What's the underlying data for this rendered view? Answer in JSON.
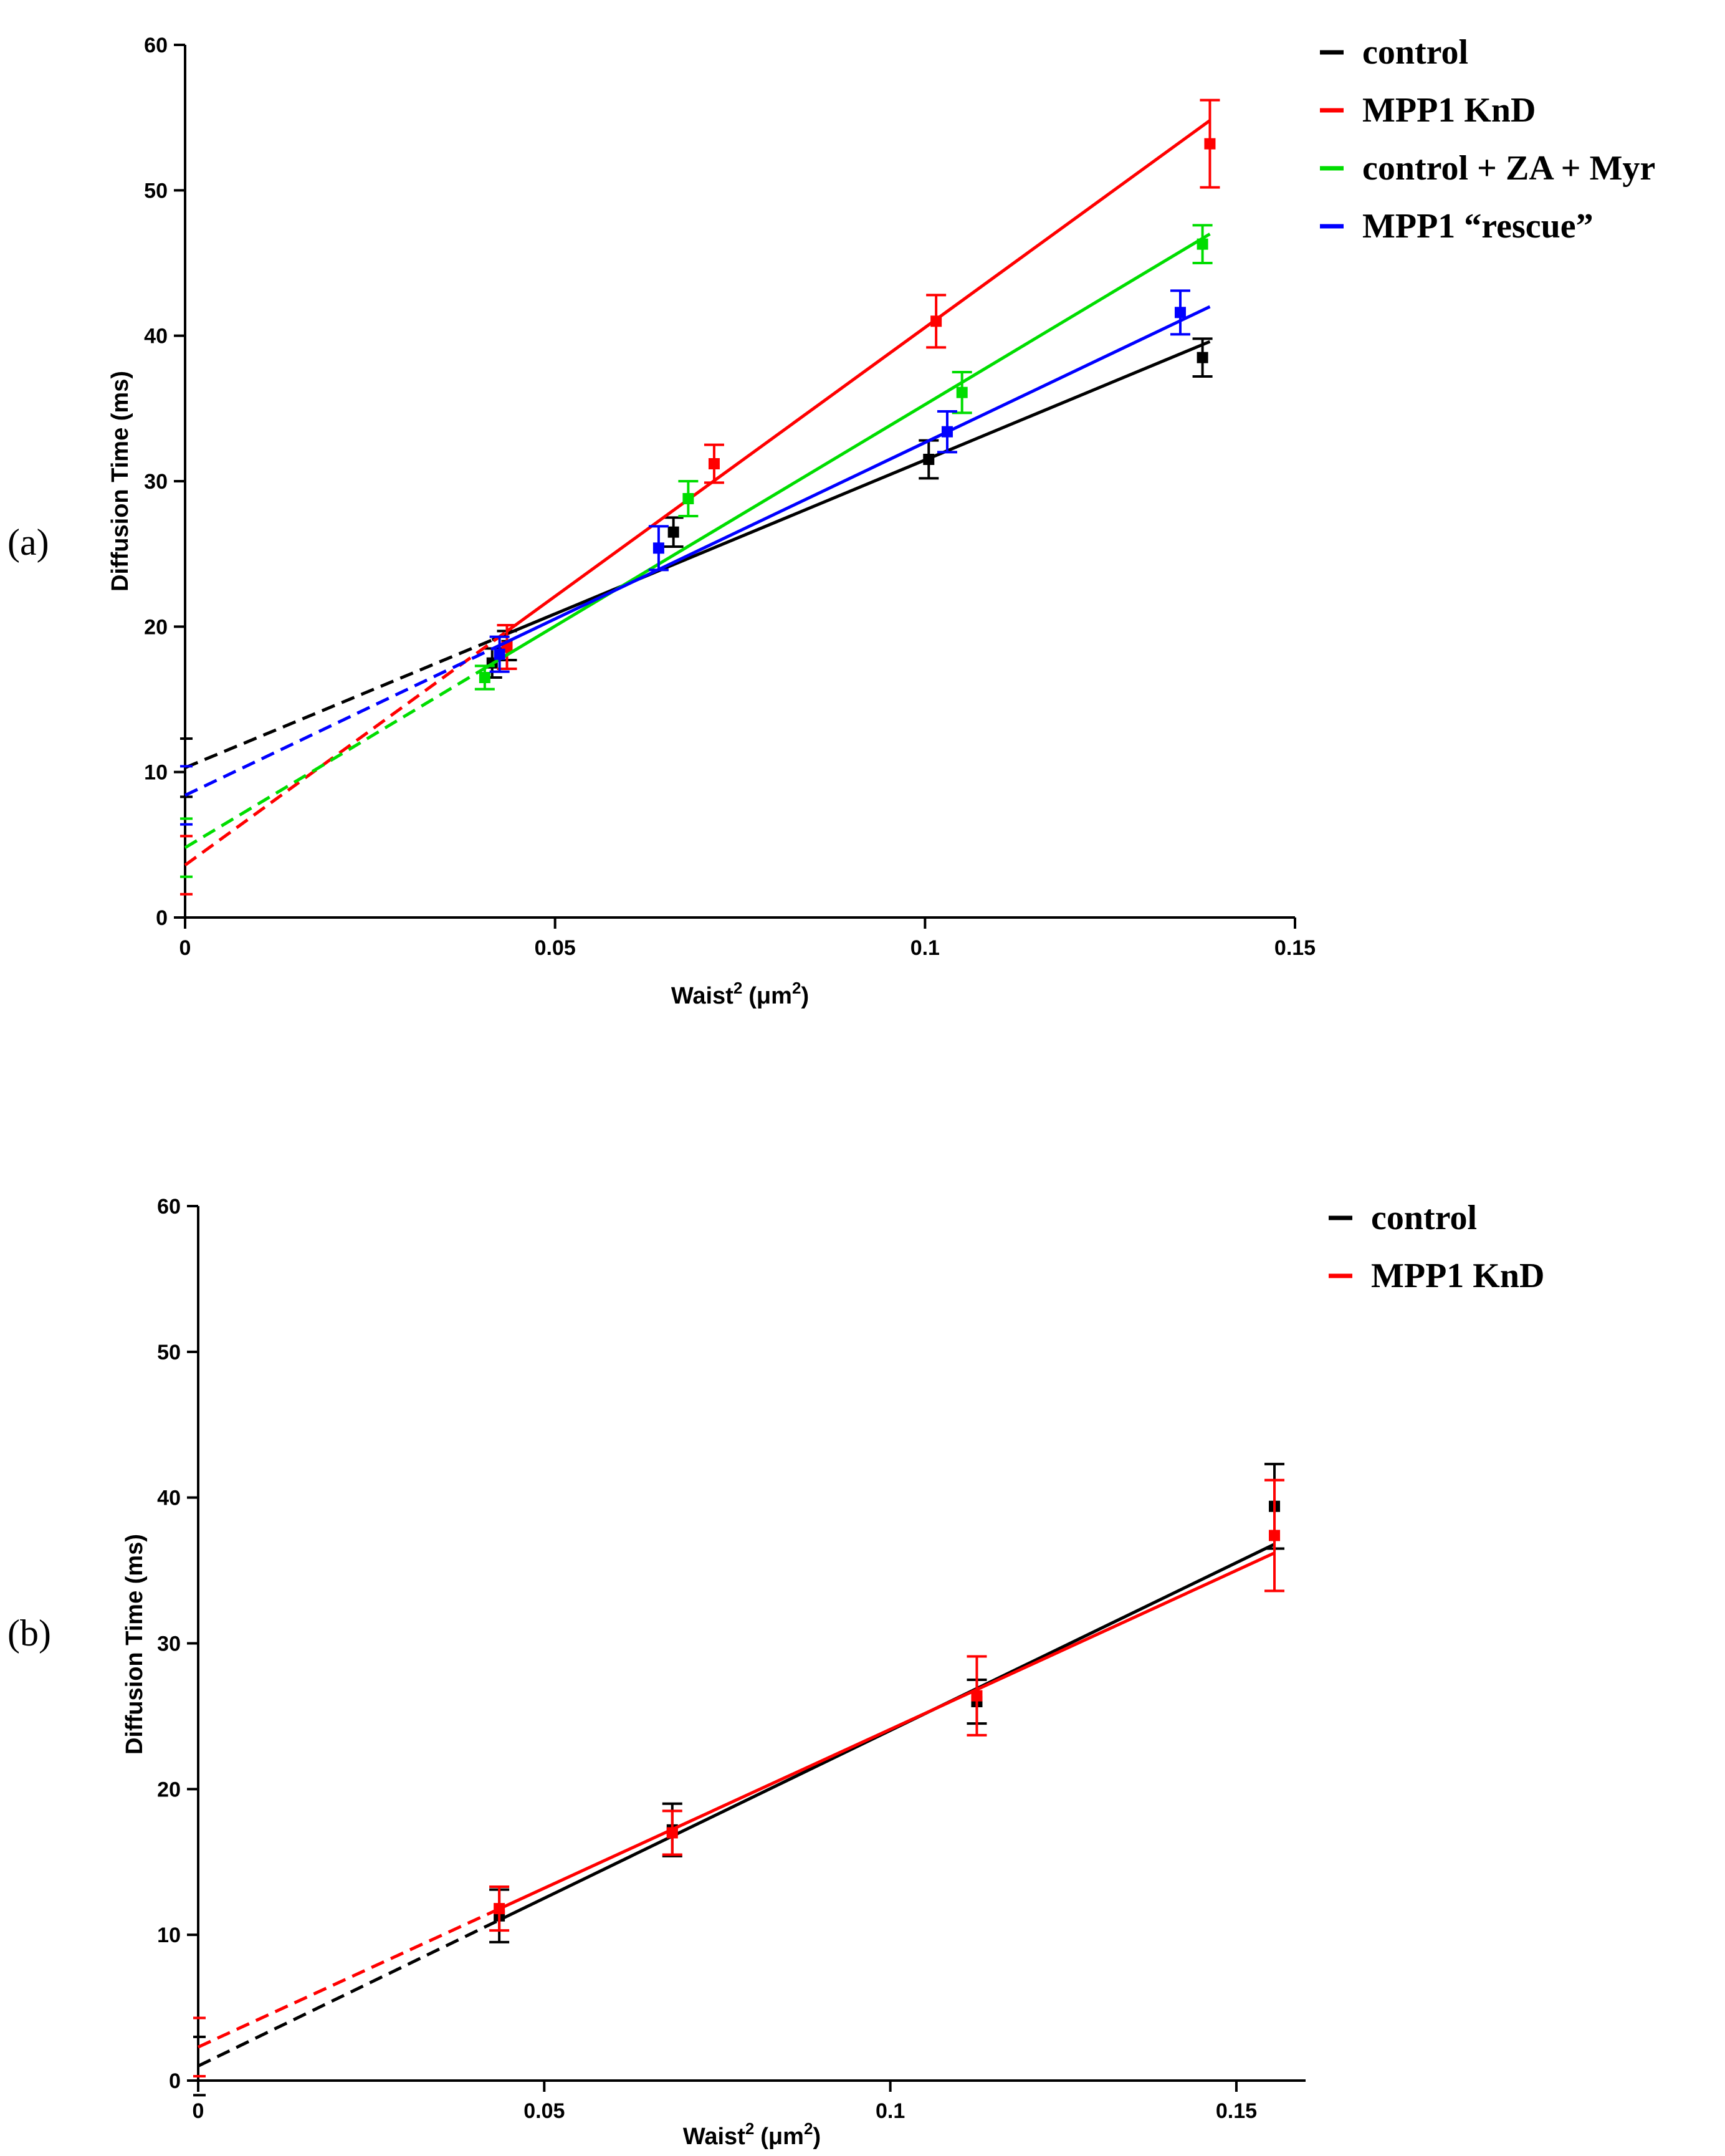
{
  "chart_data": [
    {
      "type": "scatter",
      "panel_label": "(a)",
      "xlabel_main": "Waist",
      "xlabel_sup": "2",
      "xlabel_unit": "(μm",
      "xlabel_unit_sup": "2",
      "xlabel_close": ")",
      "ylabel": "Diffusion Time (ms)",
      "xlim": [
        0,
        0.15
      ],
      "ylim": [
        0,
        60
      ],
      "x_ticks": [
        "0",
        "0.05",
        "0.1",
        "0.15"
      ],
      "x_tick_values": [
        0,
        0.05,
        0.1,
        0.15
      ],
      "y_ticks": [
        "0",
        "10",
        "20",
        "30",
        "40",
        "50",
        "60"
      ],
      "y_tick_values": [
        0,
        10,
        20,
        30,
        40,
        50,
        60
      ],
      "legend_position": "top-right",
      "series": [
        {
          "name": "control",
          "color": "#000000",
          "x": [
            0.0415,
            0.0435,
            0.066,
            0.1005,
            0.1375
          ],
          "y": [
            17.5,
            18.7,
            26.5,
            31.5,
            38.5
          ],
          "err": [
            1.0,
            1.0,
            1.0,
            1.3,
            1.3
          ],
          "fit": {
            "x0": 0.0,
            "y0": 10.3,
            "x_break": 0.0415,
            "x1": 0.1385,
            "y1": 39.6
          }
        },
        {
          "name": "MPP1 KnD",
          "color": "#ff0000",
          "x": [
            0.0435,
            0.0715,
            0.1015,
            0.1385
          ],
          "y": [
            18.6,
            31.2,
            41.0,
            53.2
          ],
          "err": [
            1.5,
            1.3,
            1.8,
            3.0
          ],
          "fit": {
            "x0": 0.0,
            "y0": 3.6,
            "x_break": 0.0435,
            "x1": 0.1385,
            "y1": 54.8
          }
        },
        {
          "name": "control + ZA + Myr",
          "color": "#00dd00",
          "x": [
            0.0405,
            0.068,
            0.105,
            0.1375
          ],
          "y": [
            16.5,
            28.8,
            36.1,
            46.3
          ],
          "err": [
            0.8,
            1.2,
            1.4,
            1.3
          ],
          "fit": {
            "x0": 0.0,
            "y0": 4.8,
            "x_break": 0.0405,
            "x1": 0.1385,
            "y1": 47.0
          }
        },
        {
          "name": "MPP1 “rescue”",
          "color": "#0000ff",
          "x": [
            0.0425,
            0.064,
            0.103,
            0.1345
          ],
          "y": [
            18.1,
            25.4,
            33.4,
            41.6
          ],
          "err": [
            1.2,
            1.5,
            1.4,
            1.5
          ],
          "fit": {
            "x0": 0.0,
            "y0": 8.4,
            "x_break": 0.0425,
            "x1": 0.1385,
            "y1": 42.0
          }
        }
      ]
    },
    {
      "type": "scatter",
      "panel_label": "(b)",
      "xlabel_main": "Waist",
      "xlabel_sup": "2",
      "xlabel_unit": "(μm",
      "xlabel_unit_sup": "2",
      "xlabel_close": ")",
      "ylabel": "Diffusion Time (ms)",
      "xlim": [
        0,
        0.16
      ],
      "ylim": [
        0,
        60
      ],
      "x_ticks": [
        "0",
        "0.05",
        "0.1",
        "0.15"
      ],
      "x_tick_values": [
        0,
        0.05,
        0.1,
        0.15
      ],
      "y_ticks": [
        "0",
        "10",
        "20",
        "30",
        "40",
        "50",
        "60"
      ],
      "y_tick_values": [
        0,
        10,
        20,
        30,
        40,
        50,
        60
      ],
      "legend_position": "top-right",
      "series": [
        {
          "name": "control",
          "color": "#000000",
          "x": [
            0.0435,
            0.0685,
            0.1125,
            0.1555
          ],
          "y": [
            11.3,
            17.2,
            26.0,
            39.4
          ],
          "err": [
            1.8,
            1.8,
            1.5,
            2.9
          ],
          "fit": {
            "x0": 0.0,
            "y0": 1.0,
            "x_break": 0.0435,
            "x1": 0.1555,
            "y1": 36.8
          }
        },
        {
          "name": "MPP1 KnD",
          "color": "#ff0000",
          "x": [
            0.0435,
            0.0685,
            0.1125,
            0.1555
          ],
          "y": [
            11.8,
            17.0,
            26.4,
            37.4
          ],
          "err": [
            1.5,
            1.5,
            2.7,
            3.8
          ],
          "fit": {
            "x0": 0.0,
            "y0": 2.3,
            "x_break": 0.0435,
            "x1": 0.1555,
            "y1": 36.2
          }
        }
      ]
    }
  ]
}
